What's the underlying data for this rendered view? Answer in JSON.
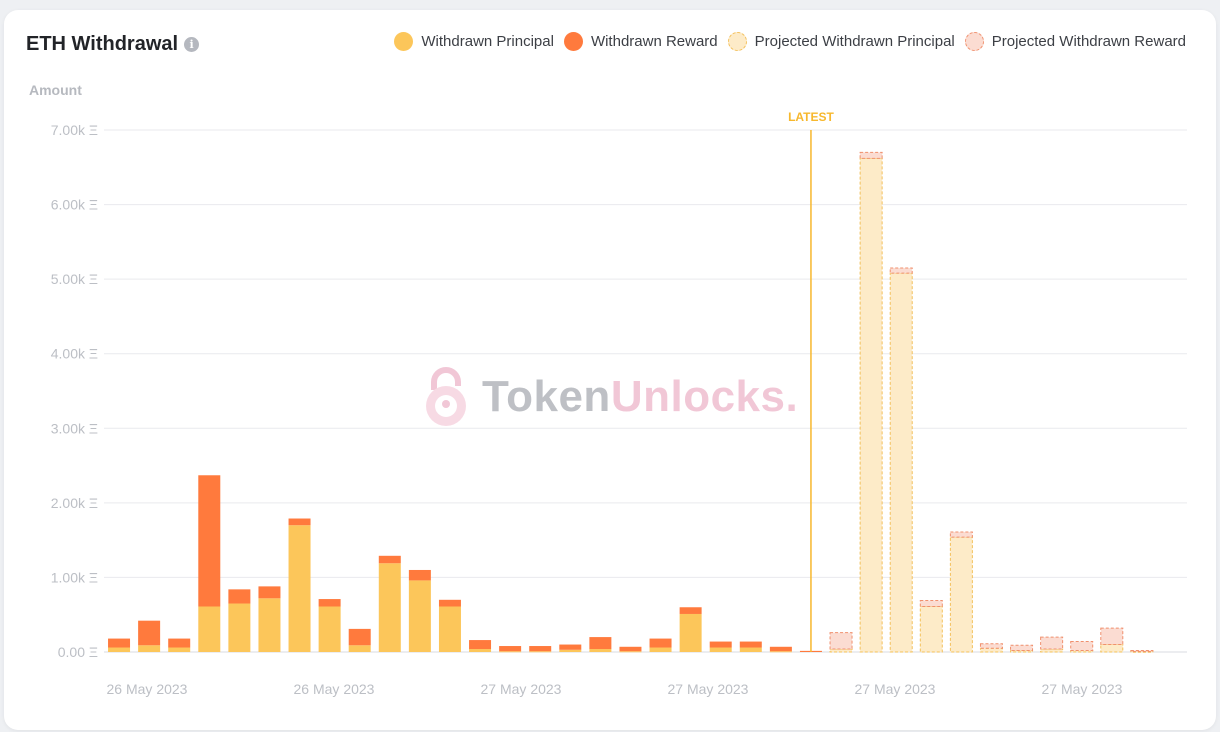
{
  "title": "ETH Withdrawal",
  "info_icon": "i",
  "legend": [
    {
      "label": "Withdrawn Principal",
      "color": "#fcc65a",
      "projected": false
    },
    {
      "label": "Withdrawn Reward",
      "color": "#ff7a3d",
      "projected": false
    },
    {
      "label": "Projected Withdrawn Principal",
      "color": "#fdebc8",
      "projected": true
    },
    {
      "label": "Projected Withdrawn Reward",
      "color": "#fbdcd2",
      "projected": true
    }
  ],
  "watermark": {
    "part1": "Token",
    "part2": "Unlocks."
  },
  "chart_data": {
    "type": "bar",
    "stacked": true,
    "ylabel": "Amount",
    "ylim": [
      0,
      7000
    ],
    "yticks": [
      "0.00 Ξ",
      "1.00k Ξ",
      "2.00k Ξ",
      "3.00k Ξ",
      "4.00k Ξ",
      "5.00k Ξ",
      "6.00k Ξ",
      "7.00k Ξ"
    ],
    "xtick_labels": [
      "26 May 2023",
      "26 May 2023",
      "27 May 2023",
      "27 May 2023",
      "27 May 2023",
      "27 May 2023"
    ],
    "marker": {
      "label": "LATEST",
      "after_index": 23
    },
    "grid": true,
    "legend_position": "top-right",
    "series": [
      {
        "name": "Withdrawn Principal",
        "values": [
          60,
          90,
          60,
          610,
          650,
          720,
          1700,
          610,
          90,
          1190,
          960,
          610,
          40,
          10,
          10,
          30,
          40,
          10,
          60,
          510,
          60,
          60,
          10,
          0,
          null,
          null,
          null,
          null,
          null,
          null,
          null,
          null,
          null,
          null,
          null,
          null
        ]
      },
      {
        "name": "Withdrawn Reward",
        "values": [
          120,
          330,
          120,
          1760,
          190,
          160,
          90,
          100,
          220,
          100,
          140,
          90,
          120,
          70,
          70,
          70,
          160,
          60,
          120,
          90,
          80,
          80,
          60,
          15,
          null,
          null,
          null,
          null,
          null,
          null,
          null,
          null,
          null,
          null,
          null,
          null
        ]
      },
      {
        "name": "Projected Withdrawn Principal",
        "values": [
          null,
          null,
          null,
          null,
          null,
          null,
          null,
          null,
          null,
          null,
          null,
          null,
          null,
          null,
          null,
          null,
          null,
          null,
          null,
          null,
          null,
          null,
          null,
          null,
          40,
          6620,
          5080,
          610,
          1540,
          50,
          20,
          40,
          20,
          100,
          10,
          null
        ]
      },
      {
        "name": "Projected Withdrawn Reward",
        "values": [
          null,
          null,
          null,
          null,
          null,
          null,
          null,
          null,
          null,
          null,
          null,
          null,
          null,
          null,
          null,
          null,
          null,
          null,
          null,
          null,
          null,
          null,
          null,
          null,
          220,
          80,
          70,
          80,
          70,
          60,
          70,
          160,
          120,
          220,
          10,
          null
        ]
      }
    ]
  }
}
